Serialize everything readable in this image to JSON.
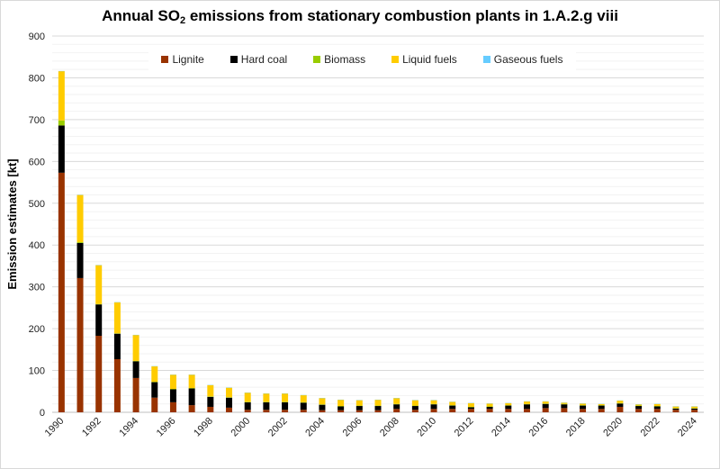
{
  "chart_data": {
    "type": "bar",
    "stacked": true,
    "title_pre": "Annual SO",
    "title_sub": "2",
    "title_post": " emissions from stationary combustion plants in 1.A.2.g viii",
    "xlabel": "",
    "ylabel": "Emission estimates [kt]",
    "ylim": [
      0,
      900
    ],
    "yticks": [
      0,
      100,
      200,
      300,
      400,
      500,
      600,
      700,
      800,
      900
    ],
    "grid": true,
    "legend_position": "top",
    "categories": [
      1990,
      1991,
      1992,
      1993,
      1994,
      1995,
      1996,
      1997,
      1998,
      1999,
      2000,
      2001,
      2002,
      2003,
      2004,
      2005,
      2006,
      2007,
      2008,
      2009,
      2010,
      2011,
      2012,
      2013,
      2014,
      2015,
      2016,
      2017,
      2018,
      2019,
      2020,
      2021,
      2022,
      2023,
      2024
    ],
    "xtick_labels": [
      "1990",
      "1992",
      "1994",
      "1996",
      "1998",
      "2000",
      "2002",
      "2004",
      "2006",
      "2008",
      "2010",
      "2012",
      "2014",
      "2016",
      "2018",
      "2020",
      "2022",
      "2024"
    ],
    "series": [
      {
        "name": "Lignite",
        "color": "#993300",
        "values": [
          573,
          321,
          183,
          127,
          82,
          35,
          24,
          17,
          13,
          11,
          6,
          6,
          6,
          6,
          5,
          5,
          5,
          5,
          8,
          6,
          8,
          8,
          8,
          8,
          8,
          8,
          10,
          10,
          8,
          8,
          13,
          8,
          8,
          6,
          6
        ]
      },
      {
        "name": "Hard coal",
        "color": "#000000",
        "values": [
          113,
          84,
          75,
          61,
          40,
          37,
          31,
          40,
          24,
          24,
          18,
          18,
          18,
          17,
          13,
          9,
          10,
          10,
          11,
          9,
          11,
          8,
          4,
          5,
          8,
          11,
          10,
          9,
          8,
          8,
          8,
          7,
          6,
          3,
          3
        ]
      },
      {
        "name": "Biomass",
        "color": "#99cc00",
        "values": [
          12,
          2,
          1,
          1,
          1,
          1,
          1,
          1,
          1,
          1,
          1,
          1,
          1,
          1,
          1,
          1,
          1,
          1,
          1,
          1,
          1,
          1,
          1,
          1,
          1,
          1,
          1,
          1,
          1,
          1,
          1,
          1,
          1,
          1,
          1
        ]
      },
      {
        "name": "Liquid fuels",
        "color": "#ffcc00",
        "values": [
          118,
          113,
          93,
          74,
          62,
          37,
          34,
          32,
          27,
          23,
          22,
          20,
          20,
          17,
          15,
          15,
          13,
          14,
          14,
          13,
          9,
          8,
          9,
          7,
          5,
          6,
          5,
          3,
          4,
          3,
          6,
          3,
          5,
          4,
          4
        ]
      },
      {
        "name": "Gaseous fuels",
        "color": "#66ccff",
        "values": [
          0.3,
          0.3,
          0.3,
          0.3,
          0.3,
          0.3,
          0.3,
          0.3,
          0.3,
          0.3,
          0.3,
          0.3,
          0.3,
          0.3,
          0.3,
          0.3,
          0.3,
          0.3,
          0.3,
          0.3,
          0.3,
          0.3,
          0.3,
          0.3,
          0.3,
          0.3,
          0.3,
          0.3,
          0.3,
          0.3,
          0.3,
          0.3,
          0.3,
          0.3,
          0.3
        ]
      }
    ]
  }
}
